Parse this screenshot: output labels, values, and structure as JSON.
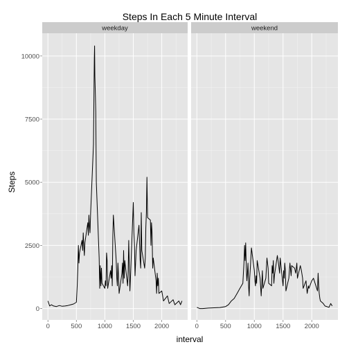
{
  "chart_data": {
    "type": "line",
    "title": "Steps In Each 5 Minute Interval",
    "xlabel": "interval",
    "ylabel": "Steps",
    "xlim": [
      -100,
      2455
    ],
    "ylim": [
      -450,
      10900
    ],
    "x_ticks": [
      0,
      500,
      1000,
      1500,
      2000
    ],
    "y_ticks": [
      0,
      2500,
      5000,
      7500,
      10000
    ],
    "grid": true,
    "colors": {
      "panel_bg": "#e5e5e5",
      "grid_major": "#ffffff",
      "strip_bg": "#cccccc",
      "line": "#000000"
    },
    "facets": [
      {
        "label": "weekday",
        "x": [
          0,
          30,
          60,
          100,
          150,
          200,
          250,
          300,
          350,
          400,
          450,
          500,
          515,
          525,
          535,
          545,
          555,
          600,
          610,
          620,
          630,
          640,
          650,
          700,
          710,
          720,
          730,
          740,
          750,
          800,
          810,
          815,
          820,
          825,
          830,
          835,
          840,
          850,
          900,
          910,
          920,
          930,
          940,
          950,
          1000,
          1010,
          1020,
          1030,
          1040,
          1050,
          1100,
          1110,
          1120,
          1130,
          1140,
          1150,
          1200,
          1210,
          1220,
          1230,
          1240,
          1250,
          1300,
          1310,
          1320,
          1330,
          1340,
          1350,
          1400,
          1410,
          1420,
          1430,
          1440,
          1450,
          1500,
          1510,
          1520,
          1530,
          1540,
          1550,
          1600,
          1610,
          1620,
          1630,
          1640,
          1650,
          1700,
          1710,
          1720,
          1730,
          1740,
          1750,
          1800,
          1810,
          1820,
          1830,
          1840,
          1850,
          1900,
          1910,
          1920,
          1930,
          1940,
          1950,
          2000,
          2030,
          2100,
          2130,
          2200,
          2230,
          2300,
          2330,
          2355
        ],
        "y": [
          300,
          100,
          150,
          100,
          80,
          120,
          90,
          100,
          120,
          150,
          180,
          250,
          900,
          1600,
          2500,
          1800,
          2200,
          2700,
          2300,
          3000,
          2500,
          2100,
          2600,
          3400,
          2900,
          3700,
          3300,
          3000,
          3800,
          6500,
          8800,
          9900,
          10400,
          9200,
          8800,
          8400,
          7800,
          5000,
          2000,
          800,
          1700,
          900,
          1600,
          1000,
          800,
          1100,
          900,
          2200,
          1900,
          800,
          1500,
          1200,
          1700,
          900,
          2800,
          3700,
          1900,
          1200,
          900,
          1800,
          1300,
          600,
          1400,
          1800,
          1000,
          2300,
          1200,
          1900,
          900,
          1500,
          2700,
          1600,
          700,
          1200,
          4200,
          3000,
          2500,
          1300,
          1800,
          2300,
          3300,
          2600,
          1900,
          1600,
          3800,
          2300,
          1600,
          2000,
          3200,
          3800,
          5200,
          3600,
          3500,
          2500,
          3400,
          3000,
          1600,
          2000,
          1100,
          600,
          1400,
          900,
          1200,
          600,
          700,
          300,
          500,
          200,
          350,
          150,
          300,
          150,
          300
        ]
      },
      {
        "label": "weekend",
        "x": [
          0,
          50,
          100,
          200,
          300,
          400,
          500,
          550,
          600,
          650,
          700,
          750,
          800,
          810,
          820,
          830,
          840,
          850,
          860,
          870,
          880,
          890,
          900,
          910,
          920,
          930,
          940,
          950,
          1000,
          1010,
          1020,
          1030,
          1040,
          1050,
          1100,
          1120,
          1140,
          1150,
          1200,
          1220,
          1240,
          1250,
          1300,
          1310,
          1320,
          1330,
          1340,
          1350,
          1400,
          1420,
          1440,
          1450,
          1500,
          1510,
          1520,
          1530,
          1540,
          1550,
          1600,
          1620,
          1640,
          1650,
          1700,
          1720,
          1740,
          1750,
          1800,
          1820,
          1840,
          1850,
          1900,
          1920,
          1940,
          1950,
          2000,
          2030,
          2100,
          2110,
          2120,
          2130,
          2140,
          2150,
          2200,
          2230,
          2300,
          2330,
          2355
        ],
        "y": [
          50,
          0,
          0,
          20,
          30,
          40,
          80,
          150,
          300,
          400,
          600,
          800,
          1000,
          1400,
          1800,
          2500,
          1900,
          2600,
          1600,
          1100,
          1400,
          1800,
          900,
          500,
          1200,
          1600,
          2000,
          2400,
          1500,
          1100,
          900,
          1300,
          1000,
          1900,
          1200,
          500,
          1500,
          800,
          1200,
          2000,
          1600,
          1000,
          900,
          1700,
          1400,
          1900,
          1000,
          1300,
          2100,
          1800,
          1400,
          2000,
          900,
          1500,
          1200,
          1800,
          1500,
          700,
          1200,
          1800,
          1300,
          1700,
          1600,
          1400,
          1800,
          1200,
          1700,
          1500,
          1200,
          800,
          1100,
          600,
          900,
          800,
          1100,
          1200,
          700,
          1400,
          900,
          600,
          400,
          300,
          200,
          100,
          50,
          200,
          100
        ]
      }
    ]
  }
}
